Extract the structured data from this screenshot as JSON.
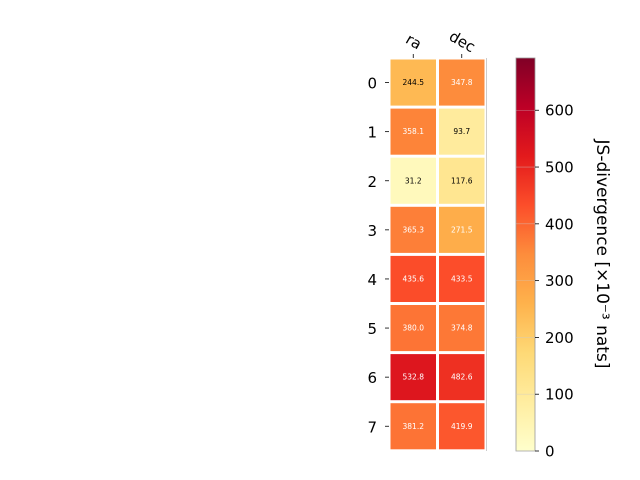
{
  "chart_data": {
    "type": "heatmap",
    "x_categories": [
      "ra",
      "dec"
    ],
    "y_categories": [
      "0",
      "1",
      "2",
      "3",
      "4",
      "5",
      "6",
      "7"
    ],
    "values": [
      [
        244.5,
        347.8
      ],
      [
        358.1,
        93.7
      ],
      [
        31.2,
        117.6
      ],
      [
        365.3,
        271.5
      ],
      [
        435.6,
        433.5
      ],
      [
        380.0,
        374.8
      ],
      [
        532.8,
        482.6
      ],
      [
        381.2,
        419.9
      ]
    ],
    "colorbar": {
      "label": "JS-divergence [×10⁻³ nats]",
      "ticks": [
        "0",
        "100",
        "200",
        "300",
        "400",
        "500",
        "600"
      ],
      "range": [
        0,
        692
      ],
      "colormap": "YlOrRd",
      "colors": [
        "#ffffcc",
        "#ffeda0",
        "#fed976",
        "#feb24c",
        "#fd8d3c",
        "#fc4e2a",
        "#e31a1c",
        "#bd0026",
        "#800026"
      ]
    },
    "x_tick_position": "top",
    "grid": false
  }
}
